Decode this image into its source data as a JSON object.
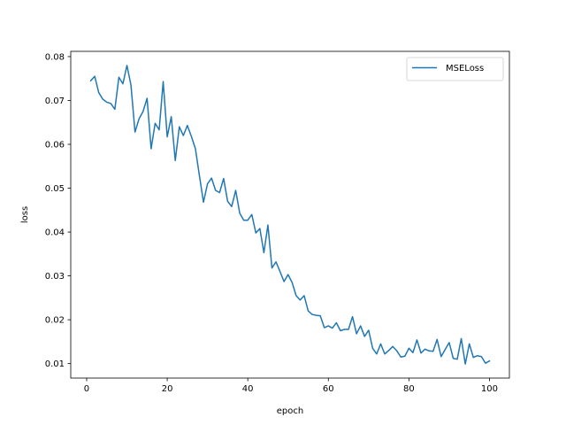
{
  "chart_data": {
    "type": "line",
    "title": "",
    "xlabel": "epoch",
    "ylabel": "loss",
    "xlim": [
      -3.95,
      104.95
    ],
    "ylim": [
      0.0067,
      0.0812
    ],
    "xticks": [
      0,
      20,
      40,
      60,
      80,
      100
    ],
    "xtick_labels": [
      "0",
      "20",
      "40",
      "60",
      "80",
      "100"
    ],
    "yticks": [
      0.01,
      0.02,
      0.03,
      0.04,
      0.05,
      0.06,
      0.07,
      0.08
    ],
    "ytick_labels": [
      "0.01",
      "0.02",
      "0.03",
      "0.04",
      "0.05",
      "0.06",
      "0.07",
      "0.08"
    ],
    "grid": false,
    "legend_position": "top-right",
    "series": [
      {
        "name": "MSELoss",
        "color": "#1f77b4",
        "x": [
          1,
          2,
          3,
          4,
          5,
          6,
          7,
          8,
          9,
          10,
          11,
          12,
          13,
          14,
          15,
          16,
          17,
          18,
          19,
          20,
          21,
          22,
          23,
          24,
          25,
          26,
          27,
          28,
          29,
          30,
          31,
          32,
          33,
          34,
          35,
          36,
          37,
          38,
          39,
          40,
          41,
          42,
          43,
          44,
          45,
          46,
          47,
          48,
          49,
          50,
          51,
          52,
          53,
          54,
          55,
          56,
          57,
          58,
          59,
          60,
          61,
          62,
          63,
          64,
          65,
          66,
          67,
          68,
          69,
          70,
          71,
          72,
          73,
          74,
          75,
          76,
          77,
          78,
          79,
          80,
          81,
          82,
          83,
          84,
          85,
          86,
          87,
          88,
          89,
          90,
          91,
          92,
          93,
          94,
          95,
          96,
          97,
          98,
          99,
          100
        ],
        "y": [
          0.0745,
          0.0755,
          0.0718,
          0.0703,
          0.0696,
          0.0693,
          0.068,
          0.0753,
          0.0738,
          0.078,
          0.0735,
          0.0628,
          0.0658,
          0.0675,
          0.0705,
          0.059,
          0.0648,
          0.0633,
          0.0743,
          0.0617,
          0.0663,
          0.0563,
          0.064,
          0.062,
          0.0643,
          0.0618,
          0.059,
          0.0528,
          0.0468,
          0.051,
          0.0523,
          0.0495,
          0.049,
          0.0522,
          0.047,
          0.0458,
          0.0495,
          0.0443,
          0.0427,
          0.0427,
          0.044,
          0.0398,
          0.0408,
          0.0353,
          0.0416,
          0.0318,
          0.0332,
          0.031,
          0.0287,
          0.0303,
          0.0285,
          0.0255,
          0.0245,
          0.0255,
          0.022,
          0.0212,
          0.021,
          0.0209,
          0.0182,
          0.0186,
          0.0181,
          0.0193,
          0.0175,
          0.0178,
          0.0178,
          0.0207,
          0.0168,
          0.0186,
          0.0162,
          0.0176,
          0.0135,
          0.0122,
          0.0145,
          0.0122,
          0.013,
          0.0139,
          0.0129,
          0.0115,
          0.0117,
          0.0135,
          0.0125,
          0.0154,
          0.0124,
          0.0133,
          0.0129,
          0.0128,
          0.0155,
          0.0116,
          0.0132,
          0.0148,
          0.0112,
          0.011,
          0.0157,
          0.0099,
          0.0145,
          0.0114,
          0.0118,
          0.0116,
          0.0101,
          0.0106
        ]
      }
    ]
  }
}
